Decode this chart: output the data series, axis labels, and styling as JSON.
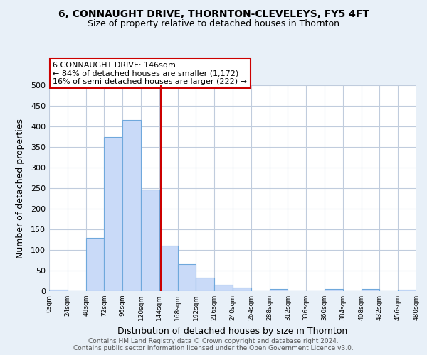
{
  "title": "6, CONNAUGHT DRIVE, THORNTON-CLEVELEYS, FY5 4FT",
  "subtitle": "Size of property relative to detached houses in Thornton",
  "xlabel": "Distribution of detached houses by size in Thornton",
  "ylabel": "Number of detached properties",
  "bin_edges": [
    0,
    24,
    48,
    72,
    96,
    120,
    144,
    168,
    192,
    216,
    240,
    264,
    288,
    312,
    336,
    360,
    384,
    408,
    432,
    456,
    480
  ],
  "bar_heights": [
    3,
    0,
    130,
    375,
    415,
    247,
    110,
    65,
    33,
    15,
    8,
    0,
    5,
    0,
    0,
    5,
    0,
    5,
    0,
    3
  ],
  "bar_color": "#c9daf8",
  "bar_edge_color": "#6fa8dc",
  "vline_x": 146,
  "vline_color": "#cc0000",
  "annotation_title": "6 CONNAUGHT DRIVE: 146sqm",
  "annotation_line1": "← 84% of detached houses are smaller (1,172)",
  "annotation_line2": "16% of semi-detached houses are larger (222) →",
  "annotation_box_color": "#ffffff",
  "annotation_box_edge": "#cc0000",
  "footer1": "Contains HM Land Registry data © Crown copyright and database right 2024.",
  "footer2": "Contains public sector information licensed under the Open Government Licence v3.0.",
  "bg_color": "#e8f0f8",
  "plot_bg_color": "#ffffff",
  "grid_color": "#c0ccdd",
  "ylim": [
    0,
    500
  ],
  "title_fontsize": 10,
  "subtitle_fontsize": 9,
  "tick_labels": [
    "0sqm",
    "24sqm",
    "48sqm",
    "72sqm",
    "96sqm",
    "120sqm",
    "144sqm",
    "168sqm",
    "192sqm",
    "216sqm",
    "240sqm",
    "264sqm",
    "288sqm",
    "312sqm",
    "336sqm",
    "360sqm",
    "384sqm",
    "408sqm",
    "432sqm",
    "456sqm",
    "480sqm"
  ]
}
